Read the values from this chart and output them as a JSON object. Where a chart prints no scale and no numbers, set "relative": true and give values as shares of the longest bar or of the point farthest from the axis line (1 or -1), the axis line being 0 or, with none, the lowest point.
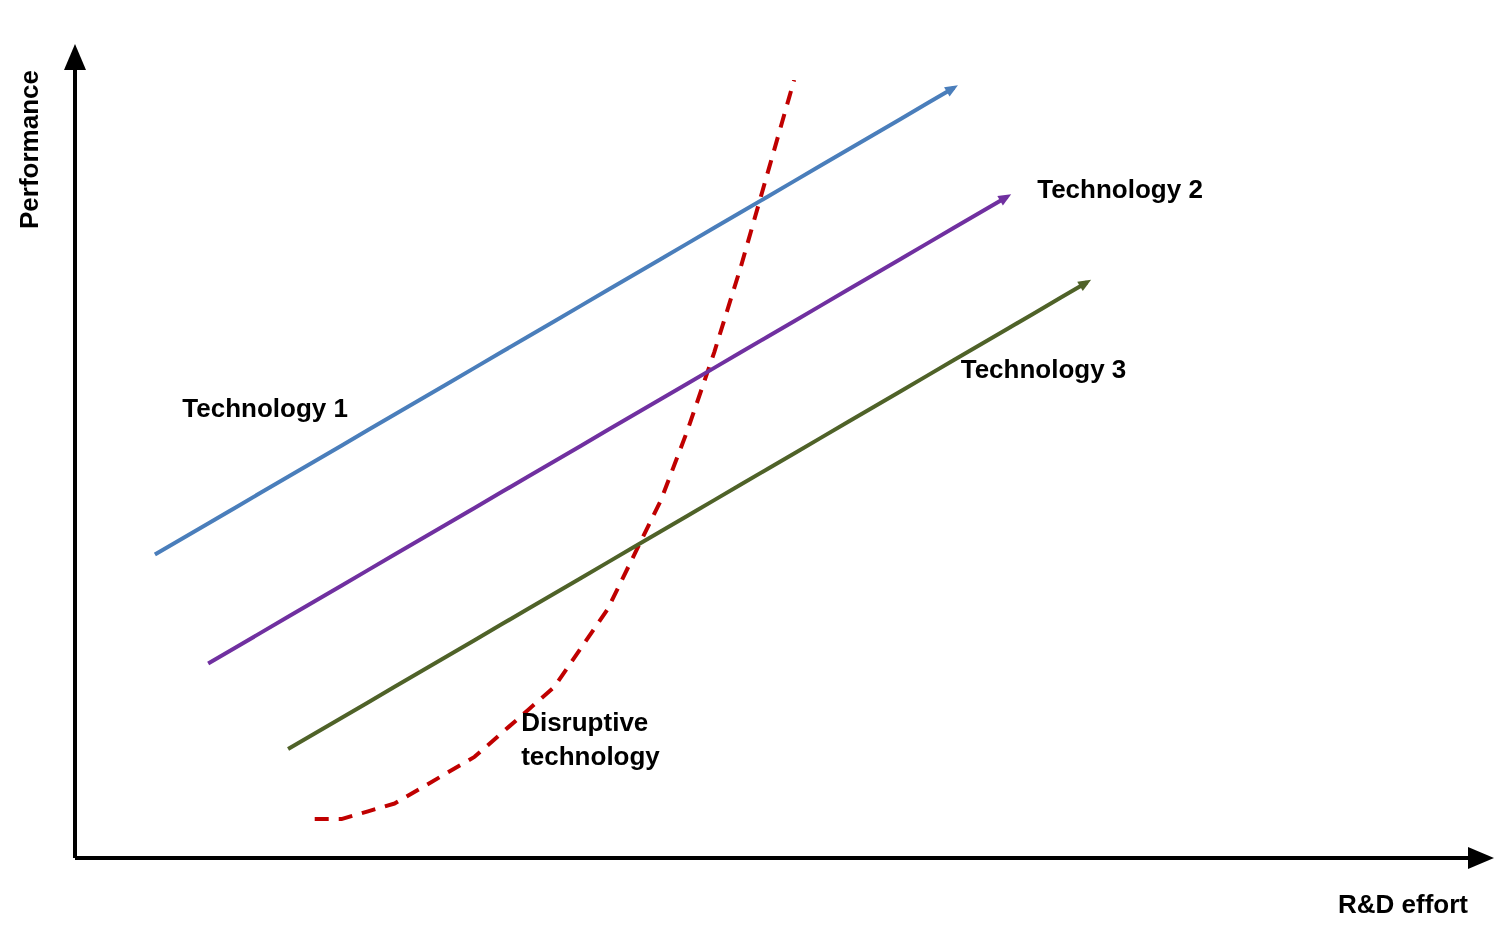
{
  "chart_data": {
    "type": "line",
    "xlabel": "R&D effort",
    "ylabel": "Performance",
    "relative": true,
    "grid": false,
    "tick_labels": false,
    "marker": "none",
    "categories": [
      null,
      null,
      null,
      null,
      null,
      null,
      null,
      null,
      null,
      null,
      null,
      null,
      null,
      null,
      null,
      null,
      null,
      null,
      null,
      null,
      null,
      null,
      null,
      null,
      null,
      null,
      null,
      null,
      null,
      null,
      null,
      null,
      null,
      null,
      null,
      null,
      null,
      null,
      null,
      null,
      null,
      null,
      null,
      null,
      null,
      null,
      null,
      null,
      null,
      null,
      null,
      null,
      null
    ],
    "series": [
      {
        "name": "Technology 1",
        "color": "#4a7ebb",
        "values": [
          null,
          null,
          null,
          0.39,
          0.41,
          0.43,
          0.45,
          0.47,
          0.49,
          0.51,
          0.53,
          0.55,
          0.57,
          0.59,
          0.61,
          0.63,
          0.65,
          0.67,
          0.69,
          0.71,
          0.73,
          0.75,
          0.77,
          0.79,
          0.81,
          0.83,
          0.85,
          0.87,
          0.89,
          0.91,
          0.93,
          0.95,
          0.97,
          0.99,
          null,
          null,
          null,
          null,
          null,
          null,
          null,
          null,
          null,
          null,
          null,
          null,
          null,
          null,
          null,
          null,
          null,
          null,
          null
        ]
      },
      {
        "name": "Technology 2",
        "color": "#7030a0",
        "values": [
          null,
          null,
          null,
          null,
          null,
          0.25,
          0.27,
          0.29,
          0.31,
          0.33,
          0.35,
          0.37,
          0.39,
          0.41,
          0.43,
          0.45,
          0.47,
          0.49,
          0.51,
          0.53,
          0.55,
          0.57,
          0.59,
          0.61,
          0.63,
          0.65,
          0.67,
          0.69,
          0.71,
          0.73,
          0.75,
          0.77,
          0.79,
          0.81,
          0.83,
          0.85,
          null,
          null,
          null,
          null,
          null,
          null,
          null,
          null,
          null,
          null,
          null,
          null,
          null,
          null,
          null,
          null,
          null
        ]
      },
      {
        "name": "Technology 3",
        "color": "#4f6228",
        "values": [
          null,
          null,
          null,
          null,
          null,
          null,
          null,
          null,
          0.14,
          0.16,
          0.18,
          0.2,
          0.22,
          0.24,
          0.26,
          0.28,
          0.3,
          0.32,
          0.34,
          0.36,
          0.38,
          0.4,
          0.42,
          0.44,
          0.46,
          0.48,
          0.5,
          0.52,
          0.54,
          0.56,
          0.58,
          0.6,
          0.62,
          0.64,
          0.66,
          0.68,
          0.7,
          0.72,
          0.74,
          null,
          null,
          null,
          null,
          null,
          null,
          null,
          null,
          null,
          null,
          null,
          null,
          null,
          null
        ]
      },
      {
        "name": "Disruptive technology",
        "color": "#c00000",
        "line_style": "dashed",
        "values": [
          null,
          null,
          null,
          null,
          null,
          null,
          null,
          null,
          null,
          0.05,
          0.05,
          0.06,
          0.07,
          0.09,
          0.11,
          0.13,
          0.16,
          0.19,
          0.22,
          0.27,
          0.32,
          0.39,
          0.46,
          0.55,
          0.65,
          0.76,
          0.88,
          1,
          null,
          null,
          null,
          null,
          null,
          null,
          null,
          null,
          null,
          null,
          null,
          null,
          null,
          null,
          null,
          null,
          null,
          null,
          null,
          null,
          null,
          null,
          null,
          null,
          null
        ]
      }
    ]
  }
}
